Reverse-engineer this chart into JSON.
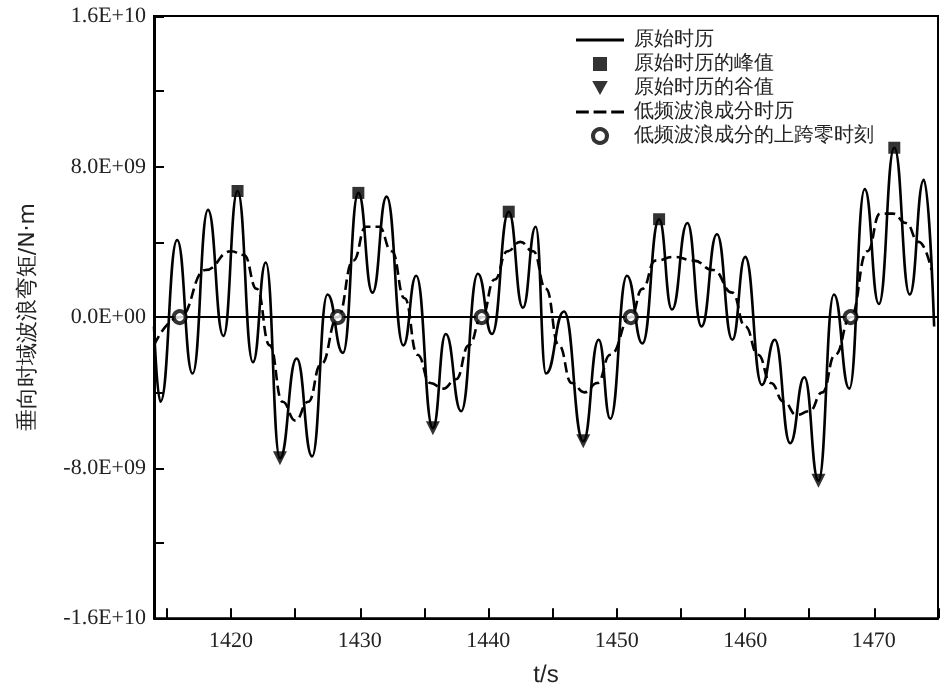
{
  "chart_data": {
    "type": "line",
    "xlabel": "t/s",
    "ylabel": "垂向时域波浪弯矩/N·m",
    "xlim": [
      1414,
      1475
    ],
    "xticks": [
      {
        "value": 1415,
        "label": null
      },
      1420,
      {
        "value": 1425,
        "label": null
      },
      1430,
      {
        "value": 1435,
        "label": null
      },
      1440,
      {
        "value": 1445,
        "label": null
      },
      1450,
      {
        "value": 1455,
        "label": null
      },
      1460,
      {
        "value": 1465,
        "label": null
      },
      1470,
      {
        "value": 1475,
        "label": null
      }
    ],
    "ylim": [
      -16000000000,
      16000000000
    ],
    "yticks": [
      {
        "value": -16000000000,
        "label": "-1.6E+10"
      },
      {
        "value": -12000000000,
        "label": null
      },
      {
        "value": -8000000000,
        "label": "-8.0E+09"
      },
      {
        "value": -4000000000,
        "label": null
      },
      {
        "value": 0,
        "label": "0.0E+00"
      },
      {
        "value": 4000000000,
        "label": null
      },
      {
        "value": 8000000000,
        "label": "8.0E+09"
      },
      {
        "value": 12000000000,
        "label": null
      },
      {
        "value": 16000000000,
        "label": "1.6E+10"
      }
    ],
    "grid": false,
    "legend": "top right",
    "ref_lines": [
      {
        "axis": "y",
        "value": 0,
        "color": "#000000",
        "line_style": "solid"
      }
    ],
    "series": [
      {
        "name": "原始时历",
        "color": "#000000",
        "marker": "none",
        "line_style": "solid",
        "x": [
          1414.0,
          1414.5,
          1415.8,
          1417.0,
          1418.2,
          1419.4,
          1420.5,
          1421.7,
          1422.7,
          1423.8,
          1425.1,
          1426.3,
          1427.5,
          1428.7,
          1429.9,
          1431.0,
          1432.1,
          1433.4,
          1434.4,
          1435.7,
          1436.7,
          1437.9,
          1439.2,
          1440.3,
          1441.6,
          1442.7,
          1443.7,
          1444.5,
          1445.9,
          1447.4,
          1448.6,
          1449.5,
          1450.8,
          1452.0,
          1453.3,
          1454.3,
          1455.5,
          1456.6,
          1457.8,
          1459.0,
          1460.0,
          1461.3,
          1462.3,
          1463.5,
          1464.6,
          1465.7,
          1466.9,
          1468.1,
          1469.3,
          1470.4,
          1471.6,
          1472.8,
          1473.9,
          1474.7
        ],
        "values": [
          -500000000,
          -4500000000,
          4100000000,
          -3000000000,
          5700000000,
          -1000000000,
          6700000000,
          -2400000000,
          2900000000,
          -7500000000,
          -2200000000,
          -7400000000,
          1200000000,
          -1900000000,
          6600000000,
          1300000000,
          6400000000,
          -1500000000,
          2200000000,
          -5900000000,
          -900000000,
          -5000000000,
          2300000000,
          -900000000,
          5600000000,
          500000000,
          4800000000,
          -3000000000,
          300000000,
          -6600000000,
          -1200000000,
          -5400000000,
          2200000000,
          -1400000000,
          5200000000,
          400000000,
          5000000000,
          -500000000,
          4400000000,
          -1200000000,
          3200000000,
          -3600000000,
          -1200000000,
          -6700000000,
          -3200000000,
          -8700000000,
          1200000000,
          -3800000000,
          6800000000,
          700000000,
          9000000000,
          1200000000,
          7300000000,
          -500000000
        ]
      },
      {
        "name": "原始时历的峰值",
        "type": "scatter",
        "color": "#000000",
        "marker": "square",
        "x": [
          1420.5,
          1429.9,
          1441.6,
          1453.3,
          1471.6
        ],
        "values": [
          6700000000,
          6600000000,
          5600000000,
          5200000000,
          9000000000
        ]
      },
      {
        "name": "原始时历的谷值",
        "type": "scatter",
        "color": "#000000",
        "marker": "triangle",
        "x": [
          1423.8,
          1435.7,
          1447.4,
          1465.7
        ],
        "values": [
          -7500000000,
          -5900000000,
          -6600000000,
          -8700000000
        ]
      },
      {
        "name": "低频波浪成分时历",
        "color": "#000000",
        "marker": "none",
        "line_style": "dashed",
        "x": [
          1414,
          1416,
          1418,
          1420,
          1421,
          1422,
          1423,
          1424,
          1425,
          1426,
          1427,
          1428.3,
          1429.5,
          1430.5,
          1431.5,
          1432.5,
          1433.5,
          1434.5,
          1435.5,
          1436.5,
          1437.5,
          1438.5,
          1439.5,
          1440.5,
          1441.5,
          1442.5,
          1443.5,
          1444.5,
          1445.5,
          1446.5,
          1447.5,
          1448.5,
          1449.5,
          1451.1,
          1452,
          1453,
          1454.5,
          1456,
          1457.5,
          1459,
          1460,
          1461,
          1462,
          1463,
          1464,
          1465,
          1466,
          1467,
          1468.2,
          1469.5,
          1470.5,
          1471.5,
          1472.5,
          1473.5,
          1474.5
        ],
        "values": [
          -1500000000,
          0,
          2500000000,
          3500000000,
          3300000000,
          1500000000,
          -1500000000,
          -4500000000,
          -5500000000,
          -4500000000,
          -2500000000,
          0,
          3000000000,
          4800000000,
          4800000000,
          3500000000,
          1000000000,
          -2000000000,
          -3500000000,
          -3800000000,
          -3300000000,
          -1500000000,
          0,
          2000000000,
          3500000000,
          4000000000,
          3500000000,
          1500000000,
          -1500000000,
          -3500000000,
          -4000000000,
          -3500000000,
          -2000000000,
          0,
          1500000000,
          3000000000,
          3200000000,
          3000000000,
          2500000000,
          1300000000,
          -500000000,
          -2000000000,
          -3500000000,
          -4500000000,
          -5200000000,
          -5000000000,
          -4000000000,
          -2000000000,
          0,
          3500000000,
          5500000000,
          5500000000,
          5000000000,
          4000000000,
          2500000000
        ]
      },
      {
        "name": "低频波浪成分的上跨零时刻",
        "type": "scatter",
        "color": "#000000",
        "marker": "circle",
        "x": [
          1416.0,
          1428.3,
          1439.5,
          1451.1,
          1468.2
        ],
        "values": [
          0,
          0,
          0,
          0,
          0
        ]
      }
    ]
  }
}
